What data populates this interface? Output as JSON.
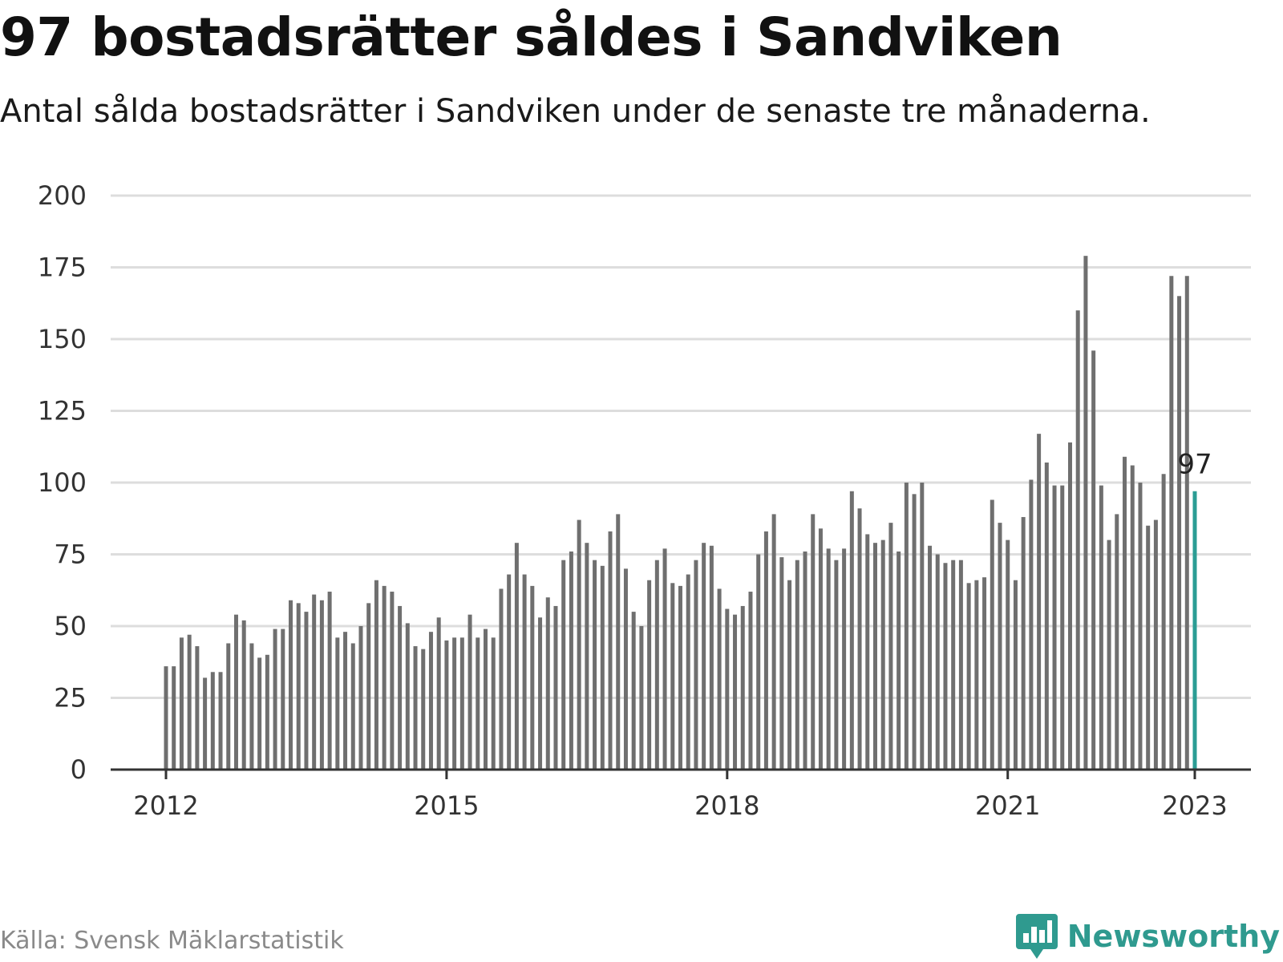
{
  "title": "97 bostadsrätter såldes i Sandviken",
  "subtitle": "Antal sålda bostadsrätter i Sandviken under de senaste tre månaderna.",
  "source": "Källa: Svensk Mäklarstatistik",
  "brand": {
    "name": "Newsworthy",
    "icon": "newsworthy-chat-bar-icon"
  },
  "colors": {
    "bar": "#6f6f6f",
    "highlight": "#2b9d94",
    "grid": "#dddddd",
    "axis": "#333333",
    "brand": "#2f9a8f"
  },
  "chart_data": {
    "type": "bar",
    "x_start": "2012-01",
    "x_end": "2023-01",
    "x_tick_labels": [
      "2012",
      "2015",
      "2018",
      "2021",
      "2023"
    ],
    "y_ticks": [
      0,
      25,
      50,
      75,
      100,
      125,
      150,
      175,
      200
    ],
    "ylim": [
      0,
      200
    ],
    "grid": true,
    "values": [
      36,
      36,
      46,
      47,
      43,
      32,
      34,
      34,
      44,
      54,
      52,
      44,
      39,
      40,
      49,
      49,
      59,
      58,
      55,
      61,
      59,
      62,
      46,
      48,
      44,
      50,
      58,
      66,
      64,
      62,
      57,
      51,
      43,
      42,
      48,
      53,
      45,
      46,
      46,
      54,
      46,
      49,
      46,
      63,
      68,
      79,
      68,
      64,
      53,
      60,
      57,
      73,
      76,
      87,
      79,
      73,
      71,
      83,
      89,
      70,
      55,
      50,
      66,
      73,
      77,
      65,
      64,
      68,
      73,
      79,
      78,
      63,
      56,
      54,
      57,
      62,
      75,
      83,
      89,
      74,
      66,
      73,
      76,
      89,
      84,
      77,
      73,
      77,
      97,
      91,
      82,
      79,
      80,
      86,
      76,
      100,
      96,
      100,
      78,
      75,
      72,
      73,
      73,
      65,
      66,
      67,
      94,
      86,
      80,
      66,
      88,
      101,
      117,
      107,
      99,
      99,
      114,
      160,
      179,
      146,
      99,
      80,
      89,
      109,
      106,
      100,
      85,
      87,
      103,
      172,
      165,
      172,
      97
    ],
    "highlight_index": 132,
    "highlight_label": "97"
  }
}
